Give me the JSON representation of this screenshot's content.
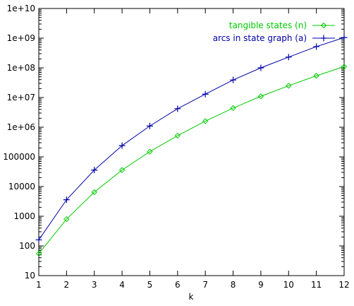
{
  "chart_data": {
    "type": "line",
    "title": "",
    "xlabel": "k",
    "ylabel": "",
    "x": [
      1,
      2,
      3,
      4,
      5,
      6,
      7,
      8,
      9,
      10,
      11,
      12
    ],
    "xlim": [
      1,
      12
    ],
    "ylim": [
      10,
      10000000000
    ],
    "yscale": "log",
    "x_tick_labels": [
      "1",
      "2",
      "3",
      "4",
      "5",
      "6",
      "7",
      "8",
      "9",
      "10",
      "11",
      "12"
    ],
    "y_ticks": [
      10,
      100,
      1000,
      10000,
      100000,
      1000000,
      10000000,
      100000000,
      1000000000,
      10000000000
    ],
    "y_tick_labels": [
      "10",
      "100",
      "1000",
      "10000",
      "100000",
      "1e+06",
      "1e+07",
      "1e+08",
      "1e+09",
      "1e+10"
    ],
    "grid": false,
    "legend_position": "top-right",
    "series": [
      {
        "name": "tangible states (n)",
        "color": "#00cc00",
        "marker": "diamond",
        "values": [
          55,
          800,
          6500,
          36000,
          150000,
          520000,
          1600000,
          4400000,
          11000000,
          25000000,
          54000000,
          110000000
        ]
      },
      {
        "name": "arcs in state graph (a)",
        "color": "#0000aa",
        "marker": "plus",
        "values": [
          160,
          3600,
          36000,
          240000,
          1100000,
          4200000,
          13000000,
          39000000,
          100000000,
          230000000,
          520000000,
          1050000000
        ]
      }
    ]
  }
}
